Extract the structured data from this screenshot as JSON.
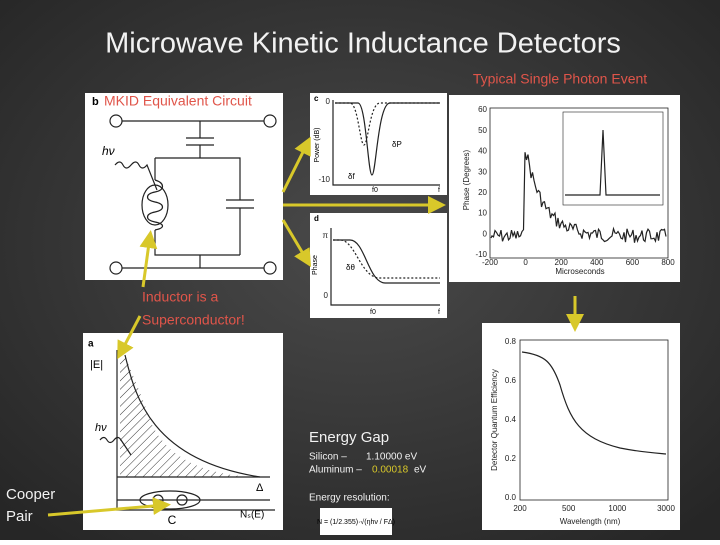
{
  "title": "Microwave Kinetic Inductance Detectors",
  "event_title": "Typical Single Photon Event",
  "circuit": {
    "panel": "b",
    "label": "MKID Equivalent Circuit",
    "photon": "hν"
  },
  "inductor_note": [
    "Inductor is a",
    "Superconductor!"
  ],
  "power_panel": {
    "panel": "c",
    "ylabel": "Power (dB)",
    "yticks": [
      "0",
      "-10"
    ],
    "delta_p": "δP",
    "delta_f": "δf",
    "f0": "f0",
    "f": "f"
  },
  "phase_panel": {
    "panel": "d",
    "ylabel": "Phase",
    "yticks": [
      "π",
      "0"
    ],
    "delta_theta": "δθ",
    "f0": "f0",
    "f": "f"
  },
  "event_plot": {
    "ylabel": "Phase (Degrees)",
    "xlabel": "Microseconds",
    "yticks": [
      "60",
      "50",
      "40",
      "30",
      "20",
      "10",
      "0",
      "-10"
    ],
    "xticks": [
      "-200",
      "0",
      "200",
      "400",
      "600",
      "800"
    ]
  },
  "efficiency_plot": {
    "ylabel": "Detector Quantum Efficiency",
    "xlabel": "Wavelength (nm)",
    "yticks": [
      "0.8",
      "0.6",
      "0.4",
      "0.2",
      "0.0"
    ],
    "xticks": [
      "200",
      "500",
      "1000",
      "3000"
    ]
  },
  "gap_panel": {
    "panel": "a",
    "energy": "|E|",
    "photon": "hν",
    "gap": "Δ",
    "cooper": "C",
    "density": "Nₛ(E)"
  },
  "energy_gap": {
    "heading": "Energy Gap",
    "silicon": [
      "Silicon –",
      "1.10000 eV"
    ],
    "aluminum": [
      "Aluminum –",
      "0.00018",
      "eV"
    ],
    "resolution": "Energy resolution:",
    "formula": "N = (1/2.355)·√(ηhν / FΔ)"
  },
  "cooper_pair": [
    "Cooper",
    "Pair"
  ]
}
